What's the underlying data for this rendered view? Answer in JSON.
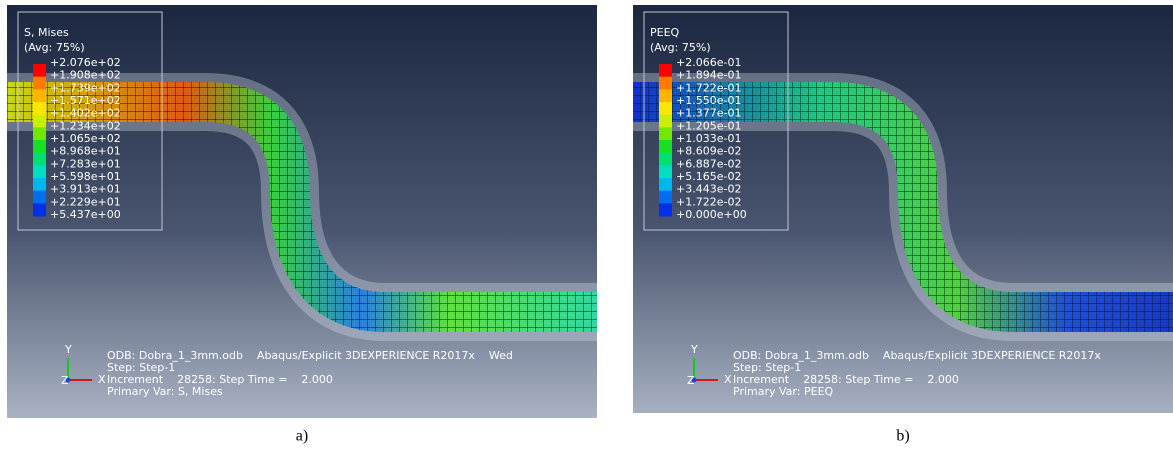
{
  "panels": [
    {
      "legend_title": [
        "S, Mises",
        "(Avg: 75%)"
      ],
      "legend_labels": [
        "+2.076e+02",
        "+1.908e+02",
        "+1.739e+02",
        "+1.571e+02",
        "+1.402e+02",
        "+1.234e+02",
        "+1.065e+02",
        "+8.968e+01",
        "+7.283e+01",
        "+5.598e+01",
        "+3.913e+01",
        "+2.229e+01",
        "+5.437e+00"
      ],
      "triad": [
        "Y",
        "X",
        "Z"
      ],
      "info": [
        "ODB: Dobra_1_3mm.odb    Abaqus/Explicit 3DEXPERIENCE R2017x    Wed",
        "Step: Step-1",
        "Increment    28258: Step Time =    2.000",
        "Primary Var: S, Mises"
      ],
      "caption": "a)"
    },
    {
      "legend_title": [
        "PEEQ",
        "(Avg: 75%)"
      ],
      "legend_labels": [
        "+2.066e-01",
        "+1.894e-01",
        "+1.722e-01",
        "+1.550e-01",
        "+1.377e-01",
        "+1.205e-01",
        "+1.033e-01",
        "+8.609e-02",
        "+6.887e-02",
        "+5.165e-02",
        "+3.443e-02",
        "+1.722e-02",
        "+0.000e+00"
      ],
      "triad": [
        "Y",
        "X",
        "Z"
      ],
      "info": [
        "ODB: Dobra_1_3mm.odb    Abaqus/Explicit 3DEXPERIENCE R2017x",
        "Step: Step-1",
        "Increment    28258: Step Time =    2.000",
        "Primary Var: PEEQ"
      ],
      "caption": "b)"
    }
  ]
}
